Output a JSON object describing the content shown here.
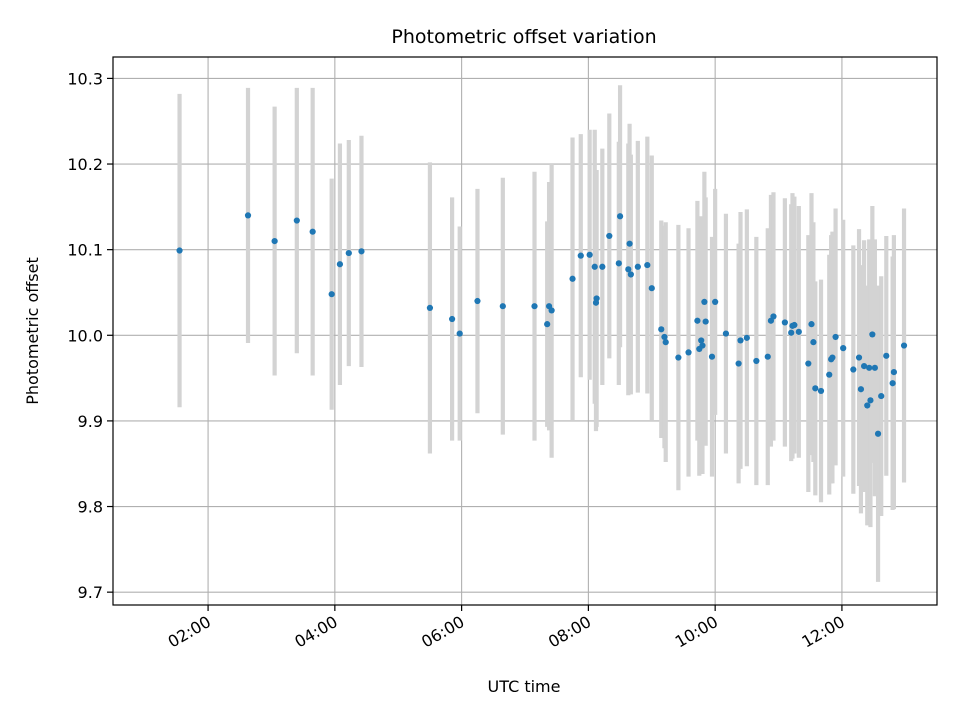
{
  "chart_data": {
    "type": "scatter",
    "title": "Photometric offset variation",
    "xlabel": "UTC time",
    "ylabel": "Photometric offset",
    "x_unit": "hours UTC",
    "xlim": [
      0.5,
      13.5
    ],
    "ylim": [
      9.685,
      10.325
    ],
    "x_ticks": [
      2,
      4,
      6,
      8,
      10,
      12
    ],
    "x_tick_labels": [
      "02:00",
      "04:00",
      "06:00",
      "08:00",
      "10:00",
      "12:00"
    ],
    "y_ticks": [
      9.7,
      9.8,
      9.9,
      10.0,
      10.1,
      10.2,
      10.3
    ],
    "y_tick_labels": [
      "9.7",
      "9.8",
      "9.9",
      "10.0",
      "10.1",
      "10.2",
      "10.3"
    ],
    "grid": true,
    "colors": {
      "point": "#1f77b4",
      "errorbar": "#d3d3d3",
      "grid": "#b0b0b0",
      "axes": "#000000"
    },
    "series": [
      {
        "marker": "dot",
        "error_bars": true,
        "points": [
          [
            1.55,
            10.099,
            0.183
          ],
          [
            2.63,
            10.14,
            0.149
          ],
          [
            3.05,
            10.11,
            0.157
          ],
          [
            3.4,
            10.134,
            0.155
          ],
          [
            3.65,
            10.121,
            0.168
          ],
          [
            3.95,
            10.048,
            0.135
          ],
          [
            4.08,
            10.083,
            0.141
          ],
          [
            4.22,
            10.096,
            0.132
          ],
          [
            4.42,
            10.098,
            0.135
          ],
          [
            5.5,
            10.032,
            0.17
          ],
          [
            5.85,
            10.019,
            0.142
          ],
          [
            5.97,
            10.002,
            0.125
          ],
          [
            6.25,
            10.04,
            0.131
          ],
          [
            6.65,
            10.034,
            0.15
          ],
          [
            7.15,
            10.034,
            0.157
          ],
          [
            7.35,
            10.013,
            0.12
          ],
          [
            7.38,
            10.034,
            0.145
          ],
          [
            7.42,
            10.029,
            0.172
          ],
          [
            7.75,
            10.066,
            0.165
          ],
          [
            7.88,
            10.093,
            0.142
          ],
          [
            8.02,
            10.094,
            0.146
          ],
          [
            8.1,
            10.08,
            0.16
          ],
          [
            8.12,
            10.038,
            0.15
          ],
          [
            8.13,
            10.043,
            0.15
          ],
          [
            8.22,
            10.08,
            0.138
          ],
          [
            8.33,
            10.116,
            0.143
          ],
          [
            8.48,
            10.084,
            0.142
          ],
          [
            8.5,
            10.139,
            0.153
          ],
          [
            8.63,
            10.077,
            0.147
          ],
          [
            8.65,
            10.107,
            0.14
          ],
          [
            8.67,
            10.071,
            0.14
          ],
          [
            8.78,
            10.08,
            0.147
          ],
          [
            8.93,
            10.082,
            0.15
          ],
          [
            9.0,
            10.055,
            0.155
          ],
          [
            9.15,
            10.007,
            0.127
          ],
          [
            9.2,
            9.998,
            0.13
          ],
          [
            9.22,
            9.992,
            0.14
          ],
          [
            9.42,
            9.974,
            0.155
          ],
          [
            9.58,
            9.98,
            0.145
          ],
          [
            9.72,
            10.017,
            0.14
          ],
          [
            9.75,
            9.984,
            0.148
          ],
          [
            9.78,
            9.994,
            0.145
          ],
          [
            9.8,
            9.988,
            0.15
          ],
          [
            9.83,
            10.039,
            0.152
          ],
          [
            9.85,
            10.016,
            0.145
          ],
          [
            9.95,
            9.975,
            0.14
          ],
          [
            10.0,
            10.039,
            0.132
          ],
          [
            10.17,
            10.002,
            0.14
          ],
          [
            10.37,
            9.967,
            0.14
          ],
          [
            10.4,
            9.994,
            0.15
          ],
          [
            10.5,
            9.997,
            0.15
          ],
          [
            10.65,
            9.97,
            0.145
          ],
          [
            10.83,
            9.975,
            0.15
          ],
          [
            10.88,
            10.017,
            0.147
          ],
          [
            10.92,
            10.022,
            0.145
          ],
          [
            11.1,
            10.015,
            0.145
          ],
          [
            11.2,
            10.003,
            0.15
          ],
          [
            11.22,
            10.011,
            0.155
          ],
          [
            11.25,
            10.012,
            0.15
          ],
          [
            11.32,
            10.004,
            0.147
          ],
          [
            11.47,
            9.967,
            0.15
          ],
          [
            11.52,
            10.013,
            0.153
          ],
          [
            11.55,
            9.992,
            0.14
          ],
          [
            11.58,
            9.938,
            0.125
          ],
          [
            11.67,
            9.935,
            0.13
          ],
          [
            11.8,
            9.954,
            0.14
          ],
          [
            11.83,
            9.972,
            0.145
          ],
          [
            11.85,
            9.974,
            0.147
          ],
          [
            11.9,
            9.998,
            0.15
          ],
          [
            12.02,
            9.985,
            0.15
          ],
          [
            12.18,
            9.96,
            0.145
          ],
          [
            12.27,
            9.974,
            0.15
          ],
          [
            12.3,
            9.937,
            0.145
          ],
          [
            12.35,
            9.964,
            0.147
          ],
          [
            12.4,
            9.918,
            0.14
          ],
          [
            12.43,
            9.962,
            0.15
          ],
          [
            12.45,
            9.924,
            0.148
          ],
          [
            12.48,
            10.001,
            0.15
          ],
          [
            12.52,
            9.962,
            0.15
          ],
          [
            12.57,
            9.885,
            0.173
          ],
          [
            12.62,
            9.929,
            0.14
          ],
          [
            12.7,
            9.976,
            0.14
          ],
          [
            12.8,
            9.944,
            0.148
          ],
          [
            12.82,
            9.957,
            0.16
          ],
          [
            12.98,
            9.988,
            0.16
          ]
        ]
      }
    ]
  }
}
